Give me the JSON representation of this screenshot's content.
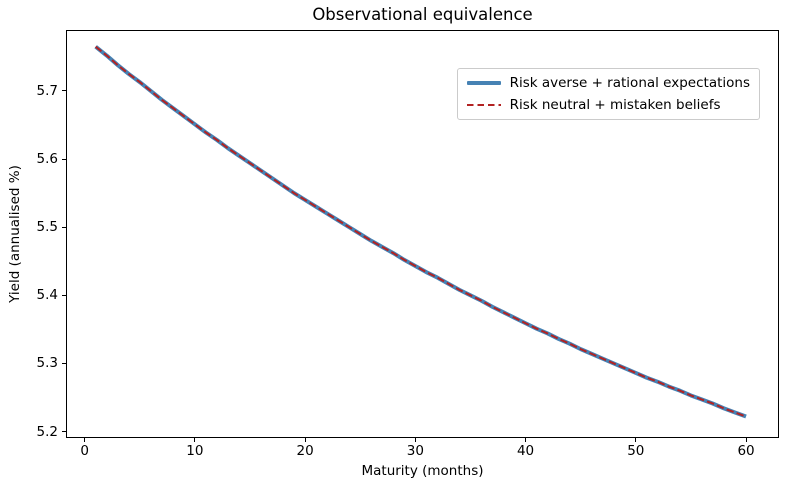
{
  "chart_data": {
    "type": "line",
    "title": "Observational equivalence",
    "xlabel": "Maturity (months)",
    "ylabel": "Yield (annualised %)",
    "xlim": [
      -1.6,
      62.9
    ],
    "ylim": [
      5.192,
      5.788
    ],
    "xticks": [
      0,
      10,
      20,
      30,
      40,
      50,
      60
    ],
    "yticks": [
      5.2,
      5.3,
      5.4,
      5.5,
      5.6,
      5.7
    ],
    "xtick_labels": [
      "0",
      "10",
      "20",
      "30",
      "40",
      "50",
      "60"
    ],
    "ytick_labels": [
      "5.2",
      "5.3",
      "5.4",
      "5.5",
      "5.6",
      "5.7"
    ],
    "grid": false,
    "legend_position": "upper right",
    "frame_color": "#000000",
    "background_color": "#ffffff",
    "x": [
      1,
      2,
      3,
      4,
      5,
      6,
      7,
      8,
      9,
      10,
      11,
      12,
      13,
      14,
      15,
      16,
      17,
      18,
      19,
      20,
      21,
      22,
      23,
      24,
      25,
      26,
      27,
      28,
      29,
      30,
      31,
      32,
      33,
      34,
      35,
      36,
      37,
      38,
      39,
      40,
      41,
      42,
      43,
      44,
      45,
      46,
      47,
      48,
      49,
      50,
      51,
      52,
      53,
      54,
      55,
      56,
      57,
      58,
      59,
      60
    ],
    "series": [
      {
        "name": "Risk averse + rational expectations",
        "color": "#4682b4",
        "style": "solid",
        "linewidth": 4,
        "values": [
          5.765,
          5.752,
          5.738,
          5.725,
          5.713,
          5.7,
          5.687,
          5.675,
          5.663,
          5.651,
          5.639,
          5.628,
          5.616,
          5.605,
          5.594,
          5.583,
          5.572,
          5.561,
          5.55,
          5.54,
          5.53,
          5.52,
          5.51,
          5.5,
          5.49,
          5.48,
          5.471,
          5.462,
          5.452,
          5.443,
          5.434,
          5.426,
          5.417,
          5.408,
          5.4,
          5.392,
          5.383,
          5.375,
          5.367,
          5.359,
          5.351,
          5.344,
          5.336,
          5.329,
          5.321,
          5.314,
          5.307,
          5.3,
          5.293,
          5.286,
          5.279,
          5.273,
          5.266,
          5.26,
          5.253,
          5.247,
          5.241,
          5.234,
          5.228,
          5.222
        ]
      },
      {
        "name": "Risk neutral + mistaken beliefs",
        "color": "#b22222",
        "style": "dashed",
        "linewidth": 2,
        "values": [
          5.765,
          5.752,
          5.738,
          5.725,
          5.713,
          5.7,
          5.687,
          5.675,
          5.663,
          5.651,
          5.639,
          5.628,
          5.616,
          5.605,
          5.594,
          5.583,
          5.572,
          5.561,
          5.55,
          5.54,
          5.53,
          5.52,
          5.51,
          5.5,
          5.49,
          5.48,
          5.471,
          5.462,
          5.452,
          5.443,
          5.434,
          5.426,
          5.417,
          5.408,
          5.4,
          5.392,
          5.383,
          5.375,
          5.367,
          5.359,
          5.351,
          5.344,
          5.336,
          5.329,
          5.321,
          5.314,
          5.307,
          5.3,
          5.293,
          5.286,
          5.279,
          5.273,
          5.266,
          5.26,
          5.253,
          5.247,
          5.241,
          5.234,
          5.228,
          5.222
        ]
      }
    ]
  }
}
